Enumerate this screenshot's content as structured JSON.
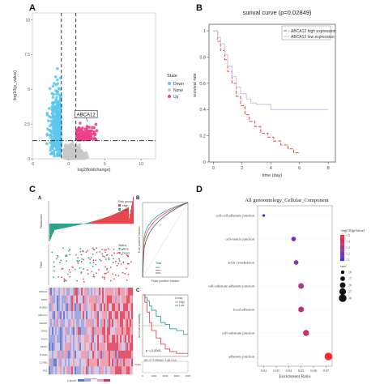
{
  "panels": {
    "a": "A",
    "b": "B",
    "c": "C",
    "d": "D"
  },
  "chart_data": [
    {
      "id": "A",
      "type": "scatter",
      "subtype": "volcano",
      "xlabel": "log2(foldchange)",
      "ylabel": "-log10(p_value)",
      "xlim": [
        -5,
        12
      ],
      "ylim": [
        0,
        10.5
      ],
      "xticks": [
        "-5",
        "0",
        "5",
        "10"
      ],
      "yticks": [
        "0",
        "2.5",
        "5",
        "7.5",
        "10"
      ],
      "vlines": [
        -1,
        1
      ],
      "hline": 1.3,
      "legend": {
        "title": "State",
        "position": "right",
        "entries": [
          "Down",
          "None",
          "Up"
        ]
      },
      "colors": {
        "Down": "#5bc8ef",
        "None": "#c8c8c8",
        "Up": "#ee3f8b"
      },
      "annotation": {
        "label": "ABCA12",
        "x": 2.4,
        "y": 2.9
      },
      "group_summary": [
        {
          "state": "Down",
          "x_range": [
            -4.2,
            -1.05
          ],
          "y_max": 10.0
        },
        {
          "state": "None",
          "x_range": [
            -1,
            1
          ],
          "y_max": 2.5
        },
        {
          "state": "Up",
          "x_range": [
            1.05,
            7.5
          ],
          "y_max": 3.2
        }
      ]
    },
    {
      "id": "B",
      "type": "line",
      "subtype": "kaplan-meier",
      "title": "surival curve (p=0.02849)",
      "xlabel": "time (day)",
      "ylabel": "survival rate",
      "xlim": [
        -0.3,
        8.5
      ],
      "ylim": [
        0,
        1.05
      ],
      "xticks": [
        "0",
        "2",
        "4",
        "6",
        "8"
      ],
      "yticks": [
        "0",
        "0.2",
        "0.4",
        "0.6",
        "0.8",
        "1"
      ],
      "legend_position": "top-right",
      "series": [
        {
          "name": "ABCA12 high expression",
          "color": "#e6434b",
          "dash": "4,2",
          "x": [
            0,
            0.3,
            0.5,
            0.8,
            1.0,
            1.3,
            1.6,
            1.9,
            2.2,
            2.5,
            2.9,
            3.3,
            3.8,
            4.2,
            4.7,
            5.2,
            5.6,
            6.0
          ],
          "y": [
            1,
            0.92,
            0.85,
            0.78,
            0.69,
            0.6,
            0.5,
            0.43,
            0.36,
            0.31,
            0.27,
            0.22,
            0.19,
            0.16,
            0.13,
            0.1,
            0.07,
            0.07
          ]
        },
        {
          "name": "ABCA12 low expression",
          "color": "#c8bfe2",
          "dash": "",
          "x": [
            0,
            0.3,
            0.5,
            0.8,
            1.0,
            1.3,
            1.6,
            1.9,
            2.3,
            2.6,
            3.0,
            4.0,
            6.0,
            8.0
          ],
          "y": [
            1,
            0.95,
            0.9,
            0.82,
            0.73,
            0.65,
            0.57,
            0.52,
            0.48,
            0.45,
            0.44,
            0.4,
            0.4,
            0.4
          ]
        }
      ]
    },
    {
      "id": "C",
      "type": "composite",
      "subpanels": {
        "a": "A",
        "b": "B",
        "c": "C",
        "score_label": "Riskscore",
        "time_label": "Time",
        "legend_group_title": "Risk group",
        "legend_group_items": [
          "High",
          "Low"
        ],
        "legend_status_title": "Status",
        "legend_status_items": [
          "Alive",
          "Dead"
        ],
        "xlabel_bottom": "Samples",
        "roc_xlabel": "False positive fraction",
        "roc_ylabel": "True positive fraction",
        "roc_legend_title": "Time",
        "km_ylabel": "Survival probability",
        "km_pvalue": "p < 0.0001",
        "km_legend_title": "Group",
        "km_legend_items": [
          "High",
          "Low"
        ],
        "km_hr": "HR: 2.72 (95%CI: 1.86-3.41)",
        "km_risk_title": "Strata",
        "km_xticks": [
          "0",
          "1000",
          "2000",
          "3000",
          "4000"
        ],
        "colorbar_label": "z-score",
        "colorbar_ticks": [
          "-2",
          "0",
          "2"
        ],
        "gene_rows": [
          "HMGA1",
          "SPP1",
          "BUB1B",
          "ABCA12",
          "CENPF",
          "DKK1",
          "ANLN",
          "MKI67",
          "TOP2A",
          "CCNB1",
          "FN1"
        ]
      },
      "colors": {
        "high": "#e8474f",
        "low": "#2aa58c",
        "heat_high": "#d9354c",
        "heat_low": "#5a79c7"
      }
    },
    {
      "id": "D",
      "type": "scatter",
      "subtype": "dot-plot",
      "title": "All genoontology_Cellular_Component",
      "xlabel": "Enrichment Ratio",
      "xlim": [
        0.015,
        0.075
      ],
      "xticks": [
        "0.02",
        "0.03",
        "0.04",
        "0.05",
        "0.06",
        "0.07"
      ],
      "categories": [
        "cell-cell adherens junction",
        "cell-matrix junction",
        "actin cytoskeleton",
        "cell-substrate adherens junction",
        "focal adhesion",
        "cell-substrate junction",
        "adherens junction"
      ],
      "x": [
        0.02,
        0.044,
        0.046,
        0.05,
        0.05,
        0.054,
        0.072
      ],
      "color_value": [
        1.1,
        1.3,
        1.35,
        1.45,
        1.5,
        1.55,
        1.75
      ],
      "size_value": [
        5,
        15,
        15,
        20,
        20,
        22,
        30
      ],
      "legend_color_title": "-log(10)(pValue)",
      "legend_color_ticks": [
        "1.5",
        "1.4",
        "1.3",
        "1.2",
        "1.1"
      ],
      "legend_size_title": "size",
      "legend_size_ticks": [
        "10",
        "15",
        "20",
        "25",
        "30"
      ]
    }
  ]
}
